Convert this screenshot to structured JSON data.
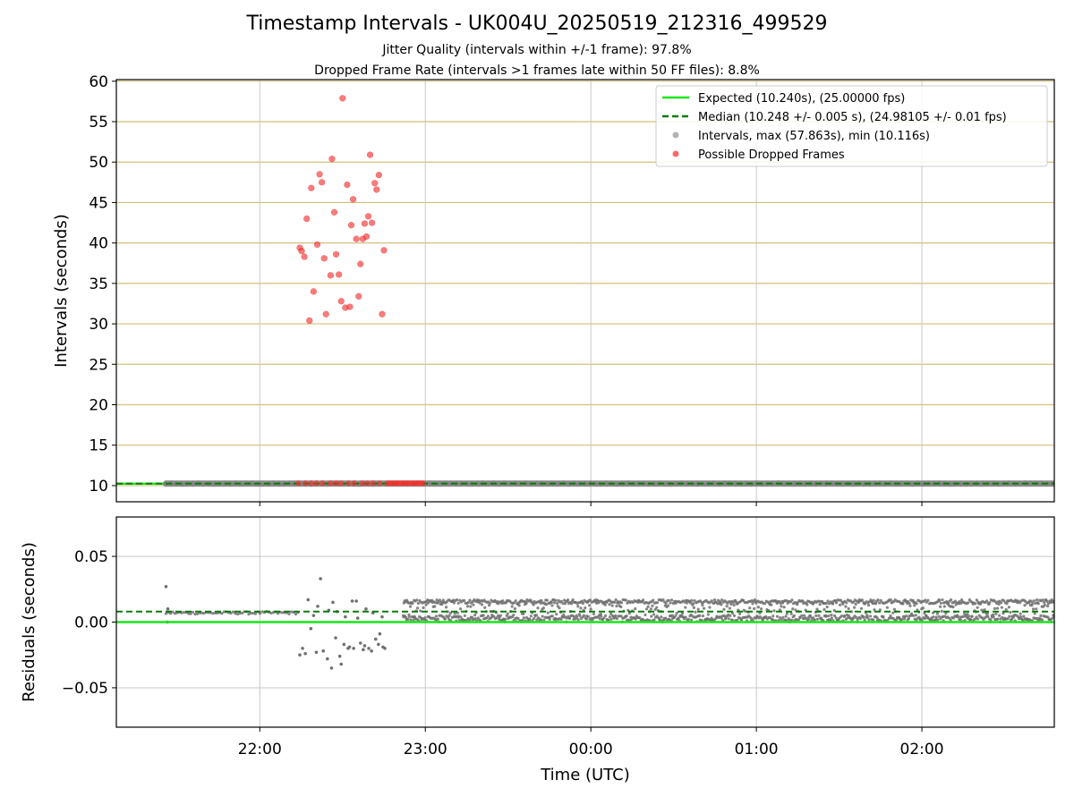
{
  "chart_data": [
    {
      "type": "scatter",
      "panel": "intervals",
      "title": "Timestamp Intervals - UK004U_20250519_212316_499529",
      "subtitle_lines": [
        "Jitter Quality (intervals within +/-1 frame): 97.8%",
        "Dropped Frame Rate (intervals >1 frames late within 50 FF files): 8.8%"
      ],
      "ylabel": "Intervals (seconds)",
      "ylim": [
        8,
        60.2
      ],
      "yticks": [
        10,
        15,
        20,
        25,
        30,
        35,
        40,
        45,
        50,
        55,
        60
      ],
      "grid": true,
      "legend_position": "upper right",
      "legend": [
        "Expected (10.240s), (25.00000 fps)",
        "Median (10.248 +/- 0.005 s), (24.98105 +/- 0.01 fps)",
        "Intervals, max (57.863s), min (10.116s)",
        "Possible Dropped Frames"
      ],
      "series": [
        {
          "name": "Expected (10.240s), (25.00000 fps)",
          "kind": "hline",
          "y": 10.24,
          "color": "#19e619"
        },
        {
          "name": "Median (10.248 +/- 0.005 s), (24.98105 +/- 0.01 fps)",
          "kind": "hline-dashed",
          "y": 10.248,
          "color": "#0a7a0a"
        },
        {
          "name": "Intervals, max (57.863s), min (10.116s)",
          "kind": "dense-band",
          "time_range": [
            "21:26",
            "02:48"
          ],
          "y": 10.25,
          "color": "#808080"
        },
        {
          "name": "Possible Dropped Frames",
          "kind": "scatter",
          "color": "#ff2b2b",
          "points": [
            [
              "22:14:30",
              39.4
            ],
            [
              "22:15:10",
              39.0
            ],
            [
              "22:16:10",
              38.3
            ],
            [
              "22:17:00",
              43.0
            ],
            [
              "22:18:00",
              30.4
            ],
            [
              "22:18:40",
              46.8
            ],
            [
              "22:19:30",
              34.0
            ],
            [
              "22:20:50",
              39.8
            ],
            [
              "22:21:40",
              48.5
            ],
            [
              "22:22:30",
              47.5
            ],
            [
              "22:23:20",
              38.1
            ],
            [
              "22:24:00",
              31.2
            ],
            [
              "22:25:40",
              36.0
            ],
            [
              "22:26:10",
              50.4
            ],
            [
              "22:27:00",
              43.8
            ],
            [
              "22:27:40",
              38.6
            ],
            [
              "22:28:40",
              36.1
            ],
            [
              "22:29:30",
              32.8
            ],
            [
              "22:30:00",
              57.9
            ],
            [
              "22:31:00",
              32.0
            ],
            [
              "22:31:40",
              47.2
            ],
            [
              "22:32:40",
              32.1
            ],
            [
              "22:33:10",
              42.2
            ],
            [
              "22:33:50",
              45.4
            ],
            [
              "22:35:00",
              40.5
            ],
            [
              "22:35:50",
              33.4
            ],
            [
              "22:36:30",
              37.4
            ],
            [
              "22:37:20",
              40.5
            ],
            [
              "22:38:00",
              42.4
            ],
            [
              "22:38:40",
              40.8
            ],
            [
              "22:39:20",
              43.3
            ],
            [
              "22:40:00",
              50.9
            ],
            [
              "22:40:40",
              42.5
            ],
            [
              "22:41:40",
              47.4
            ],
            [
              "22:42:20",
              46.6
            ],
            [
              "22:43:10",
              48.4
            ],
            [
              "22:44:20",
              31.2
            ],
            [
              "22:45:00",
              39.1
            ]
          ],
          "near_baseline": {
            "time_range": [
              "22:14",
              "23:00"
            ],
            "y": 10.3
          }
        }
      ]
    },
    {
      "type": "scatter",
      "panel": "residuals",
      "xlabel": "Time (UTC)",
      "ylabel": "Residuals (seconds)",
      "ylim": [
        -0.08,
        0.08
      ],
      "yticks": [
        0.05,
        0.0,
        -0.05
      ],
      "ytick_labels": [
        "0.05",
        "0.00",
        "−0.05"
      ],
      "xticks": [
        "22:00",
        "23:00",
        "00:00",
        "01:00",
        "02:00"
      ],
      "x_range": [
        "21:08",
        "02:48"
      ],
      "grid": true,
      "series": [
        {
          "name": "Expected",
          "kind": "hline",
          "y": 0.0,
          "color": "#19e619"
        },
        {
          "name": "Median",
          "kind": "hline-dashed",
          "y": 0.008,
          "color": "#0a7a0a"
        },
        {
          "name": "Residuals",
          "kind": "scatter",
          "color": "#707070",
          "points": [
            [
              "21:26:00",
              0.027
            ],
            [
              "21:26:30",
              0.0
            ],
            [
              "21:26:40",
              0.01
            ],
            [
              "22:14:30",
              -0.025
            ],
            [
              "22:15:30",
              -0.02
            ],
            [
              "22:16:30",
              -0.024
            ],
            [
              "22:17:30",
              0.017
            ],
            [
              "22:18:30",
              -0.005
            ],
            [
              "22:19:30",
              0.005
            ],
            [
              "22:20:30",
              -0.023
            ],
            [
              "22:21:00",
              0.012
            ],
            [
              "22:22:00",
              0.033
            ],
            [
              "22:23:00",
              -0.022
            ],
            [
              "22:24:30",
              -0.028
            ],
            [
              "22:25:00",
              0.009
            ],
            [
              "22:26:00",
              -0.035
            ],
            [
              "22:26:30",
              0.015
            ],
            [
              "22:27:30",
              -0.012
            ],
            [
              "22:28:00",
              0.008
            ],
            [
              "22:29:00",
              -0.026
            ],
            [
              "22:29:30",
              -0.032
            ],
            [
              "22:30:30",
              -0.017
            ],
            [
              "22:31:00",
              0.004
            ],
            [
              "22:32:00",
              -0.02
            ],
            [
              "22:32:30",
              -0.019
            ],
            [
              "22:33:30",
              0.016
            ],
            [
              "22:34:00",
              -0.02
            ],
            [
              "22:35:00",
              0.016
            ],
            [
              "22:35:30",
              0.003
            ],
            [
              "22:36:30",
              -0.016
            ],
            [
              "22:37:30",
              -0.021
            ],
            [
              "22:38:00",
              -0.018
            ],
            [
              "22:38:30",
              0.01
            ],
            [
              "22:39:30",
              -0.02
            ],
            [
              "22:40:30",
              -0.022
            ],
            [
              "22:41:00",
              0.007
            ],
            [
              "22:42:00",
              -0.013
            ],
            [
              "22:43:00",
              -0.017
            ],
            [
              "22:43:30",
              -0.009
            ],
            [
              "22:44:20",
              0.004
            ],
            [
              "22:44:40",
              -0.019
            ],
            [
              "22:45:20",
              -0.02
            ]
          ],
          "dense_bands": [
            {
              "time_range": [
                "21:26",
                "22:14"
              ],
              "y_range": [
                0.006,
                0.008
              ]
            },
            {
              "time_range": [
                "22:52",
                "02:48"
              ],
              "y_range": [
                0.0,
                0.017
              ]
            }
          ]
        }
      ]
    }
  ]
}
